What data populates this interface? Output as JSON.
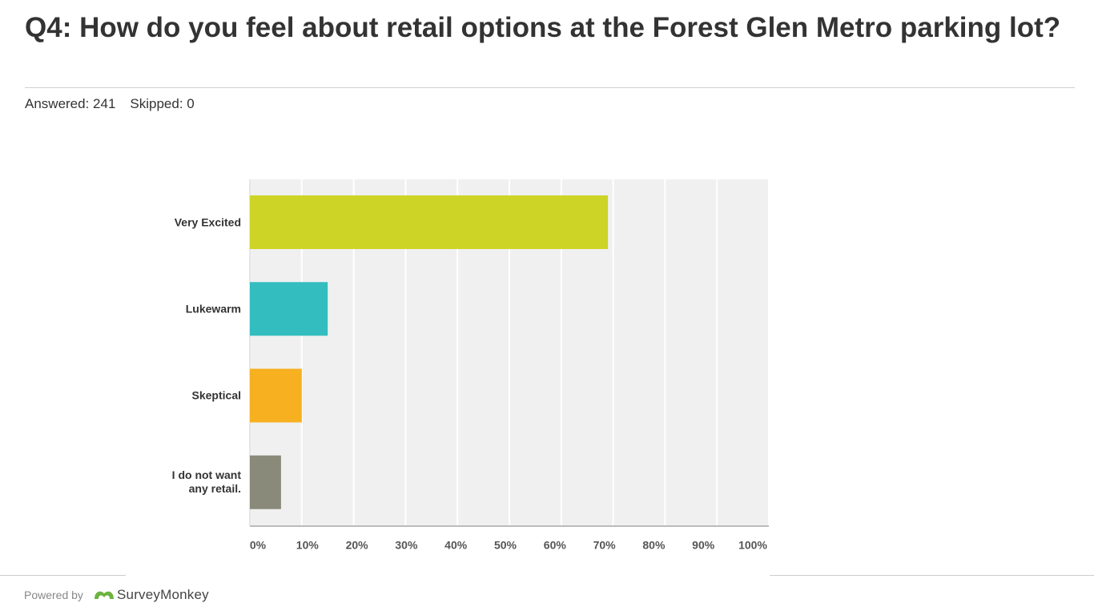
{
  "header": {
    "title": "Q4: How do you feel about retail options at the Forest Glen Metro parking lot?",
    "answered": "Answered: 241",
    "skipped": "Skipped: 0"
  },
  "chart_data": {
    "type": "bar",
    "orientation": "horizontal",
    "categories": [
      "Very Excited",
      "Lukewarm",
      "Skeptical",
      "I do not want any retail."
    ],
    "values": [
      69,
      15,
      10,
      6
    ],
    "colors": [
      "#cdd426",
      "#33bdbf",
      "#f6b020",
      "#8a8a7a"
    ],
    "xlim": [
      0,
      100
    ],
    "xticks": [
      {
        "value": 0,
        "label": "0%"
      },
      {
        "value": 10,
        "label": "10%"
      },
      {
        "value": 20,
        "label": "20%"
      },
      {
        "value": 30,
        "label": "30%"
      },
      {
        "value": 40,
        "label": "40%"
      },
      {
        "value": 50,
        "label": "50%"
      },
      {
        "value": 60,
        "label": "60%"
      },
      {
        "value": 70,
        "label": "70%"
      },
      {
        "value": 80,
        "label": "80%"
      },
      {
        "value": 90,
        "label": "90%"
      },
      {
        "value": 100,
        "label": "100%"
      }
    ],
    "grid": true
  },
  "footer": {
    "powered": "Powered by",
    "brand": "SurveyMonkey"
  }
}
